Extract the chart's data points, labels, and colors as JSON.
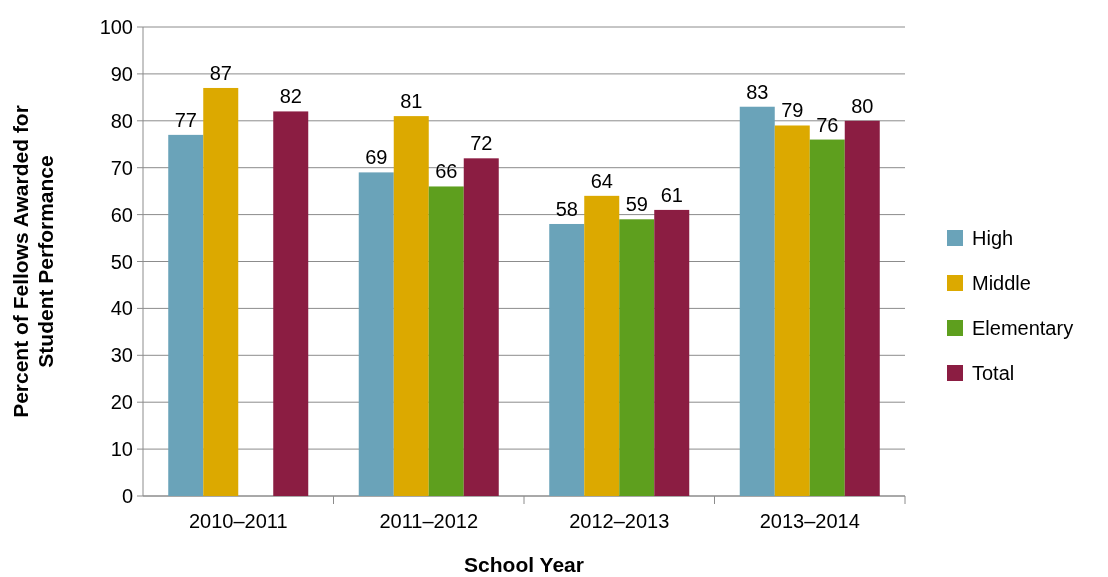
{
  "chart_data": {
    "type": "bar",
    "xlabel": "School Year",
    "ylabel": "Percent of Fellows Awarded for Student Performance",
    "categories": [
      "2010–2011",
      "2011–2012",
      "2012–2013",
      "2013–2014"
    ],
    "series": [
      {
        "name": "High",
        "color": "#6aa3b9",
        "values": [
          77,
          69,
          58,
          83
        ]
      },
      {
        "name": "Middle",
        "color": "#dca900",
        "values": [
          87,
          81,
          64,
          79
        ]
      },
      {
        "name": "Elementary",
        "color": "#5e9f1e",
        "values": [
          null,
          66,
          59,
          76
        ]
      },
      {
        "name": "Total",
        "color": "#8b1d42",
        "values": [
          82,
          72,
          61,
          80
        ]
      }
    ],
    "ylim": [
      0,
      100
    ],
    "yticks": [
      0,
      10,
      20,
      30,
      40,
      50,
      60,
      70,
      80,
      90,
      100
    ],
    "grid": "y",
    "legend": "right",
    "data_labels": true
  }
}
